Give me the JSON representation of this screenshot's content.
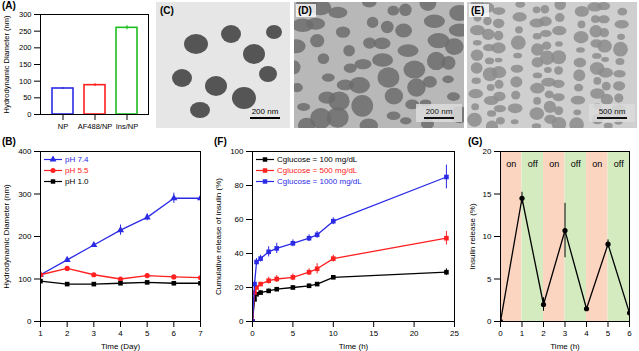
{
  "chart_data": [
    {
      "type": "bar",
      "title": "(A)",
      "categories": [
        "NP",
        "AF488/NP",
        "Ins/NP"
      ],
      "values": [
        78,
        88,
        260
      ],
      "errors": [
        3,
        4,
        6
      ],
      "colors": [
        "#2b2be6",
        "#ff2020",
        "#1fbf1f"
      ],
      "ylabel": "Hydrodynamic Diameter (nm)",
      "ylim": [
        0,
        300
      ],
      "yticks": [
        0,
        50,
        100,
        150,
        200,
        250,
        300
      ]
    },
    {
      "type": "line",
      "title": "(B)",
      "x": [
        1,
        2,
        3,
        4,
        5,
        6,
        7
      ],
      "series": [
        {
          "name": "pH 7.4",
          "color": "#2b2be6",
          "marker": "triangle",
          "values": [
            110,
            145,
            180,
            215,
            245,
            290,
            290
          ],
          "errors": [
            2,
            3,
            4,
            12,
            8,
            12,
            4
          ]
        },
        {
          "name": "pH 5.5",
          "color": "#ff2020",
          "marker": "circle",
          "values": [
            110,
            125,
            110,
            100,
            108,
            105,
            103
          ],
          "errors": [
            2,
            3,
            3,
            2,
            2,
            2,
            2
          ]
        },
        {
          "name": "pH 1.0",
          "color": "#000000",
          "marker": "square",
          "values": [
            95,
            88,
            88,
            90,
            92,
            90,
            90
          ],
          "errors": [
            2,
            2,
            2,
            2,
            2,
            2,
            2
          ]
        }
      ],
      "xlabel": "Time (Day)",
      "ylabel": "Hydrodynamic Diameter (nm)",
      "xlim": [
        1,
        7
      ],
      "xticks": [
        1,
        2,
        3,
        4,
        5,
        6,
        7
      ],
      "ylim": [
        0,
        400
      ],
      "yticks": [
        0,
        100,
        200,
        300,
        400
      ],
      "legend": "top-left"
    },
    {
      "type": "line",
      "title": "(F)",
      "x": [
        0,
        0.25,
        0.5,
        1,
        2,
        3,
        5,
        7,
        8,
        10,
        24
      ],
      "series": [
        {
          "name": "Cglucose = 100 mg/dL",
          "color": "#000000",
          "marker": "square",
          "values": [
            0,
            13,
            16,
            17,
            18,
            19,
            20,
            21,
            22,
            26,
            29
          ],
          "errors": [
            0,
            1,
            1,
            1,
            1,
            1,
            1,
            1,
            1,
            1,
            2
          ]
        },
        {
          "name": "Cglucose = 500 mg/dL",
          "color": "#ff2020",
          "marker": "square",
          "values": [
            0,
            17,
            20,
            22,
            24,
            25,
            26,
            29,
            31,
            37,
            49
          ],
          "errors": [
            0,
            1,
            1,
            1,
            2,
            2,
            2,
            2,
            3,
            2,
            4
          ]
        },
        {
          "name": "Cglucose = 1000 mg/dL",
          "color": "#2b2be6",
          "marker": "square",
          "values": [
            0,
            22,
            35,
            37,
            41,
            43,
            46,
            49,
            51,
            59,
            85
          ],
          "errors": [
            0,
            2,
            2,
            2,
            3,
            3,
            2,
            2,
            2,
            2,
            7
          ]
        }
      ],
      "xlabel": "Time (h)",
      "ylabel": "Cumulative release of insulin (%)",
      "xlim": [
        0,
        25
      ],
      "xticks": [
        0,
        5,
        10,
        15,
        20,
        25
      ],
      "ylim": [
        0,
        100
      ],
      "yticks": [
        0,
        20,
        40,
        60,
        80,
        100
      ],
      "legend": "top-left"
    },
    {
      "type": "line",
      "title": "(G)",
      "x": [
        0,
        1,
        2,
        3,
        4,
        5,
        6
      ],
      "values": [
        0,
        14.5,
        2,
        10.7,
        1.5,
        9.1,
        1.0
      ],
      "errors": [
        0,
        0.7,
        0.8,
        3.2,
        0.2,
        0.5,
        0.2
      ],
      "color": "#000000",
      "marker": "circle",
      "regions": [
        {
          "start": 0,
          "end": 1,
          "label": "on",
          "color": "#fbd5c0"
        },
        {
          "start": 1,
          "end": 2,
          "label": "off",
          "color": "#d4ebc0"
        },
        {
          "start": 2,
          "end": 3,
          "label": "on",
          "color": "#fbd5c0"
        },
        {
          "start": 3,
          "end": 4,
          "label": "off",
          "color": "#d4ebc0"
        },
        {
          "start": 4,
          "end": 5,
          "label": "on",
          "color": "#fbd5c0"
        },
        {
          "start": 5,
          "end": 6,
          "label": "off",
          "color": "#d4ebc0"
        }
      ],
      "xlabel": "Time (h)",
      "ylabel": "Insulin release (%)",
      "xlim": [
        0,
        6
      ],
      "xticks": [
        0,
        1,
        2,
        3,
        4,
        5,
        6
      ],
      "ylim": [
        0,
        20
      ],
      "yticks": [
        0,
        5,
        10,
        15,
        20
      ]
    }
  ],
  "images": [
    {
      "title": "(C)",
      "scale_bar": "200 nm"
    },
    {
      "title": "(D)",
      "scale_bar": "200 nm"
    },
    {
      "title": "(E)",
      "scale_bar": "500 nm"
    }
  ]
}
